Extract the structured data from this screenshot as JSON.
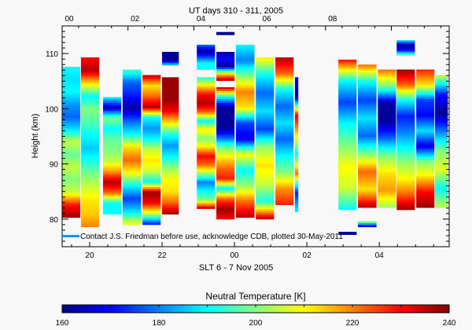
{
  "chart_data": {
    "type": "heatmap",
    "title_top_axis": "UT days 310 - 311, 2005",
    "xlabel": "SLT 6 - 7 Nov 2005",
    "ylabel": "Height (km)",
    "colorbar_label": "Neutral Temperature [K]",
    "note": "Contact J.S. Friedman before use, acknowledge CDB, plotted 30-May-2011",
    "note_color": "#0a96f0",
    "xlim_slt_hours": [
      19.24,
      29.93
    ],
    "ylim": [
      75,
      115
    ],
    "x_ticks": [
      {
        "v": 20,
        "label": "20"
      },
      {
        "v": 22,
        "label": "22"
      },
      {
        "v": 24,
        "label": "00"
      },
      {
        "v": 26,
        "label": "02"
      },
      {
        "v": 28,
        "label": "04"
      }
    ],
    "top_ticks": [
      {
        "v": 0,
        "label": "00"
      },
      {
        "v": 2,
        "label": "02"
      },
      {
        "v": 4,
        "label": "04"
      },
      {
        "v": 6,
        "label": "06"
      },
      {
        "v": 8,
        "label": "08"
      }
    ],
    "y_ticks": [
      {
        "v": 80,
        "label": "80"
      },
      {
        "v": 90,
        "label": "90"
      },
      {
        "v": 100,
        "label": "100"
      },
      {
        "v": 110,
        "label": "110"
      }
    ],
    "colorbar": {
      "min": 160,
      "max": 240,
      "ticks": [
        {
          "v": 160,
          "label": "160"
        },
        {
          "v": 180,
          "label": "180"
        },
        {
          "v": 200,
          "label": "200"
        },
        {
          "v": 220,
          "label": "220"
        },
        {
          "v": 240,
          "label": "240"
        }
      ]
    },
    "columns": [
      {
        "x": [
          19.24,
          19.76
        ],
        "h": [
          107.6,
          80.3
        ],
        "T": [
          190,
          188,
          190,
          182,
          178,
          188,
          205,
          198,
          205,
          200,
          206,
          228,
          238
        ]
      },
      {
        "x": [
          19.76,
          20.28
        ],
        "h": [
          109.3,
          78.6
        ],
        "T": [
          230,
          236,
          212,
          190,
          200,
          196,
          190,
          186,
          192,
          200,
          206,
          212,
          214,
          220
        ]
      },
      {
        "x": [
          20.37,
          20.89
        ],
        "h": [
          102.1,
          80.9
        ],
        "T": [
          190,
          165,
          200,
          190,
          198,
          200,
          205,
          218,
          236,
          222,
          190,
          190
        ]
      },
      {
        "x": [
          20.91,
          21.44
        ],
        "h": [
          107.1,
          79.0
        ],
        "T": [
          196,
          178,
          172,
          163,
          178,
          190,
          212,
          222,
          210,
          190,
          175,
          188,
          210
        ]
      },
      {
        "x": [
          21.46,
          21.98
        ],
        "h": [
          106.1,
          79.0
        ],
        "T": [
          236,
          212,
          222,
          236,
          190,
          182,
          190,
          206,
          212,
          206,
          190,
          238,
          230,
          205,
          170
        ]
      },
      {
        "x": [
          22.0,
          22.48
        ],
        "h": [
          105.7,
          80.9
        ],
        "T": [
          238,
          238,
          238,
          230,
          212,
          192,
          182,
          190,
          202,
          210,
          212,
          222,
          238
        ]
      },
      {
        "x": [
          22.0,
          22.48
        ],
        "h": [
          110.3,
          107.9
        ],
        "T": [
          162,
          162,
          162,
          190
        ]
      },
      {
        "x": [
          22.96,
          23.48
        ],
        "h": [
          111.6,
          107.1
        ],
        "T": [
          180,
          162,
          175,
          190,
          190
        ]
      },
      {
        "x": [
          22.96,
          23.48
        ],
        "h": [
          105.7,
          81.9
        ],
        "T": [
          192,
          212,
          230,
          236,
          222,
          190,
          212,
          200,
          212,
          230,
          222,
          202,
          180,
          190,
          200,
          236
        ]
      },
      {
        "x": [
          23.5,
          24.02
        ],
        "h": [
          113.9,
          113.4
        ],
        "T": [
          162,
          162
        ]
      },
      {
        "x": [
          23.5,
          24.02
        ],
        "h": [
          110.3,
          105.1
        ],
        "T": [
          162,
          170,
          162,
          210,
          238
        ]
      },
      {
        "x": [
          23.5,
          24.02
        ],
        "h": [
          103.9,
          80.0
        ],
        "T": [
          236,
          190,
          162,
          162,
          162,
          178,
          200,
          212,
          222,
          228,
          190,
          222,
          238,
          230
        ]
      },
      {
        "x": [
          24.04,
          24.57
        ],
        "h": [
          111.6,
          80.3
        ],
        "T": [
          190,
          180,
          200,
          220,
          212,
          175,
          168,
          210,
          190,
          202,
          222,
          236
        ]
      },
      {
        "x": [
          24.59,
          25.11
        ],
        "h": [
          109.3,
          80.0
        ],
        "T": [
          212,
          190,
          178,
          188,
          175,
          202,
          212,
          206,
          192,
          236
        ]
      },
      {
        "x": [
          25.13,
          25.65
        ],
        "h": [
          109.3,
          82.6
        ],
        "T": [
          236,
          222,
          190,
          178,
          188,
          178,
          190,
          200,
          218,
          228
        ]
      },
      {
        "x": [
          25.67,
          25.78
        ],
        "h": [
          105.7,
          81.3
        ],
        "T": [
          170,
          162,
          232,
          212,
          190,
          222,
          172,
          190
        ]
      },
      {
        "x": [
          26.87,
          27.39
        ],
        "h": [
          108.9,
          81.7
        ],
        "T": [
          230,
          190,
          175,
          190,
          200,
          210,
          206,
          190
        ]
      },
      {
        "x": [
          26.87,
          27.39
        ],
        "h": [
          77.7,
          77.2
        ],
        "T": [
          162,
          162
        ]
      },
      {
        "x": [
          27.41,
          27.94
        ],
        "h": [
          108.0,
          82.1
        ],
        "T": [
          222,
          190,
          175,
          188,
          178,
          200,
          222,
          212,
          236
        ]
      },
      {
        "x": [
          27.41,
          27.94
        ],
        "h": [
          79.6,
          78.6
        ],
        "T": [
          206,
          162
        ]
      },
      {
        "x": [
          27.96,
          28.48
        ],
        "h": [
          107.1,
          82.1
        ],
        "T": [
          222,
          198,
          162,
          162,
          178,
          200,
          212,
          218,
          202
        ]
      },
      {
        "x": [
          28.48,
          29.0
        ],
        "h": [
          107.1,
          81.7
        ],
        "T": [
          238,
          222,
          190,
          172,
          180,
          190,
          202,
          210,
          222,
          238
        ]
      },
      {
        "x": [
          28.48,
          29.0
        ],
        "h": [
          112.4,
          109.7
        ],
        "T": [
          190,
          162,
          170,
          200
        ]
      },
      {
        "x": [
          29.02,
          29.54
        ],
        "h": [
          107.1,
          82.1
        ],
        "T": [
          228,
          212,
          175,
          170,
          188,
          168,
          200,
          212,
          230,
          238
        ]
      },
      {
        "x": [
          29.54,
          29.91
        ],
        "h": [
          106.1,
          82.1
        ],
        "T": [
          206,
          172,
          162,
          180,
          200,
          208,
          190,
          205
        ]
      }
    ]
  }
}
